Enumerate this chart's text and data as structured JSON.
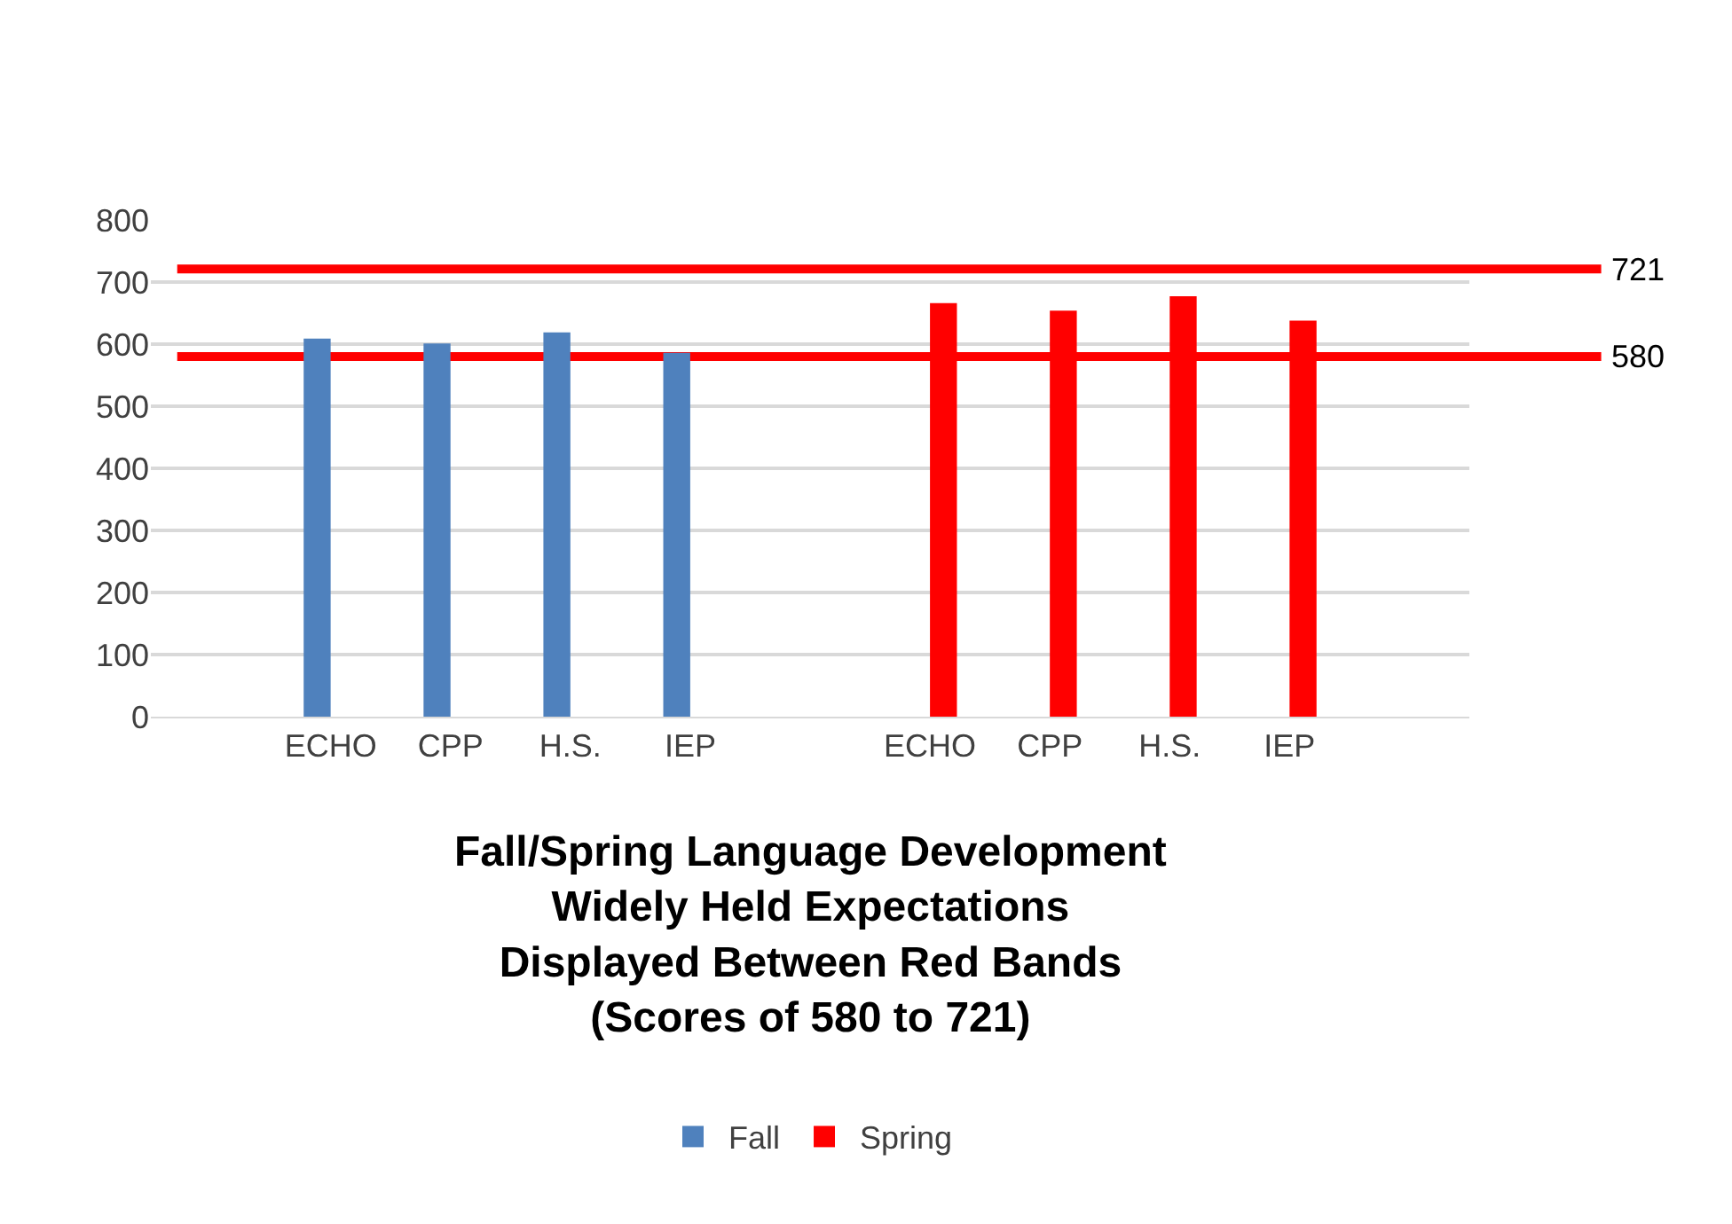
{
  "chart_data": {
    "type": "bar",
    "title": "Fall/Spring Language Development\nWidely Held Expectations\nDisplayed Between Red Bands\n(Scores of 580 to 721)",
    "categories": [
      null,
      "ECHO",
      "CPP",
      "H.S.",
      "IEP",
      null,
      "ECHO",
      "CPP",
      "H.S.",
      "IEP",
      null
    ],
    "series": [
      {
        "name": "Fall",
        "color": "#4f81bd",
        "values": [
          null,
          609,
          601,
          619,
          586,
          null,
          null,
          null,
          null,
          null,
          null
        ]
      },
      {
        "name": "Spring",
        "color": "#ff0000",
        "values": [
          null,
          null,
          null,
          null,
          null,
          null,
          666,
          654,
          677,
          638,
          null
        ]
      }
    ],
    "ylim": [
      0,
      800
    ],
    "yticks": [
      0,
      100,
      200,
      300,
      400,
      500,
      600,
      700,
      800
    ],
    "grid": "y",
    "legend": "bottom",
    "ref_lines": [
      {
        "axis": "y",
        "value": 721,
        "label": "721",
        "color": "#ff0000"
      },
      {
        "axis": "y",
        "value": 580,
        "label": "580",
        "color": "#ff0000"
      }
    ]
  }
}
